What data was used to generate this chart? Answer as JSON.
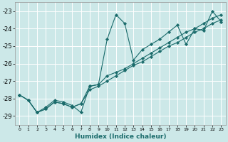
{
  "xlabel": "Humidex (Indice chaleur)",
  "bg_color": "#cce8e8",
  "grid_color": "#ffffff",
  "line_color": "#1a6b6b",
  "xlim": [
    -0.5,
    23.5
  ],
  "ylim": [
    -29.5,
    -22.5
  ],
  "xticks": [
    0,
    1,
    2,
    3,
    4,
    5,
    6,
    7,
    8,
    9,
    10,
    11,
    12,
    13,
    14,
    15,
    16,
    17,
    18,
    19,
    20,
    21,
    22,
    23
  ],
  "yticks": [
    -29,
    -28,
    -27,
    -26,
    -25,
    -24,
    -23
  ],
  "series1_x": [
    0,
    1,
    2,
    3,
    4,
    5,
    6,
    7,
    8,
    9,
    10,
    11,
    12,
    13,
    14,
    15,
    16,
    17,
    18,
    19,
    20,
    21,
    22,
    23
  ],
  "series1_y": [
    -27.8,
    -28.1,
    -28.8,
    -28.5,
    -28.1,
    -28.2,
    -28.4,
    -28.8,
    -27.3,
    -27.2,
    -24.6,
    -23.2,
    -23.7,
    -25.8,
    -25.2,
    -24.9,
    -24.6,
    -24.2,
    -23.8,
    -24.9,
    -24.0,
    -24.1,
    -23.0,
    -23.6
  ],
  "series2_x": [
    0,
    1,
    2,
    3,
    4,
    5,
    6,
    7,
    8,
    9,
    10,
    11,
    12,
    13,
    14,
    15,
    16,
    17,
    18,
    19,
    20,
    21,
    22,
    23
  ],
  "series2_y": [
    -27.8,
    -28.1,
    -28.8,
    -28.6,
    -28.2,
    -28.3,
    -28.5,
    -28.3,
    -27.5,
    -27.3,
    -27.0,
    -26.7,
    -26.4,
    -26.1,
    -25.9,
    -25.6,
    -25.3,
    -25.0,
    -24.8,
    -24.5,
    -24.2,
    -24.0,
    -23.7,
    -23.5
  ],
  "series3_x": [
    0,
    1,
    2,
    3,
    4,
    5,
    6,
    7,
    8,
    9,
    10,
    11,
    12,
    13,
    14,
    15,
    16,
    17,
    18,
    19,
    20,
    21,
    22,
    23
  ],
  "series3_y": [
    -27.8,
    -28.1,
    -28.8,
    -28.6,
    -28.2,
    -28.3,
    -28.5,
    -28.3,
    -27.3,
    -27.2,
    -26.7,
    -26.5,
    -26.3,
    -26.0,
    -25.7,
    -25.4,
    -25.1,
    -24.8,
    -24.5,
    -24.2,
    -24.0,
    -23.7,
    -23.4,
    -23.2
  ]
}
